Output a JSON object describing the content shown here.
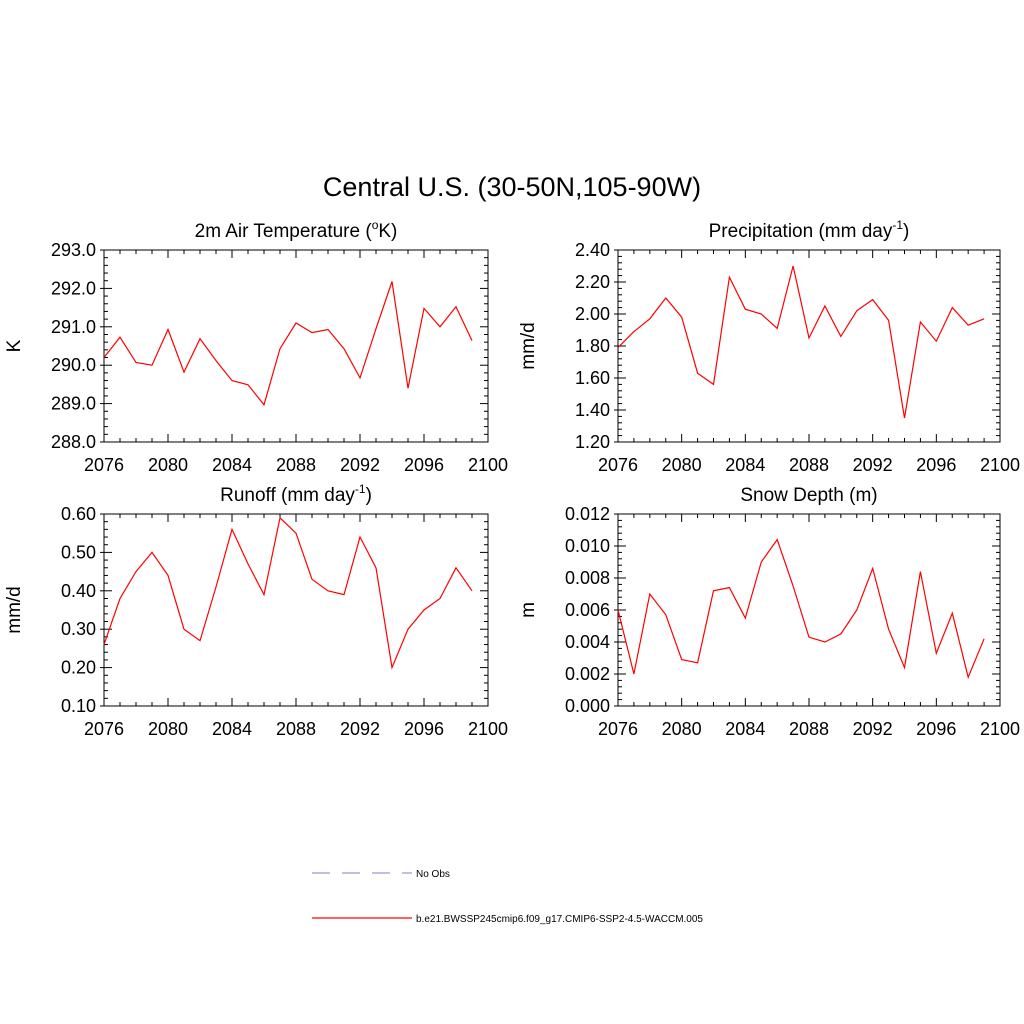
{
  "figure": {
    "title": "Central U.S. (30-50N,105-90W)"
  },
  "chart_data": [
    {
      "type": "line",
      "id": "temp",
      "title": "2m Air Temperature (",
      "title_sup": "o",
      "title_tail": "K)",
      "ylabel": "K",
      "xlim": [
        2076,
        2100
      ],
      "ylim": [
        288.0,
        293.0
      ],
      "xticks": [
        "2076",
        "2080",
        "2084",
        "2088",
        "2092",
        "2096",
        "2100"
      ],
      "yticks": [
        "288.0",
        "289.0",
        "290.0",
        "291.0",
        "292.0",
        "293.0"
      ],
      "x": [
        2076,
        2077,
        2078,
        2079,
        2080,
        2081,
        2082,
        2083,
        2084,
        2085,
        2086,
        2087,
        2088,
        2089,
        2090,
        2091,
        2092,
        2093,
        2094,
        2095,
        2096,
        2097,
        2098,
        2099
      ],
      "series": [
        {
          "name": "b.e21.BWSSP245cmip6.f09_g17.CMIP6-SSP2-4.5-WACCM.005",
          "color": "#ff0000",
          "values": [
            290.2,
            290.73,
            290.07,
            290.0,
            290.93,
            289.82,
            290.69,
            290.12,
            289.6,
            289.49,
            288.97,
            290.43,
            291.1,
            290.85,
            290.93,
            290.43,
            289.67,
            290.95,
            292.18,
            289.4,
            291.48,
            291.0,
            291.52,
            290.64
          ]
        }
      ]
    },
    {
      "type": "line",
      "id": "precip",
      "title": "Precipitation (mm day",
      "title_sup": "-1",
      "title_tail": ")",
      "ylabel": "mm/d",
      "xlim": [
        2076,
        2100
      ],
      "ylim": [
        1.2,
        2.4
      ],
      "xticks": [
        "2076",
        "2080",
        "2084",
        "2088",
        "2092",
        "2096",
        "2100"
      ],
      "yticks": [
        "1.20",
        "1.40",
        "1.60",
        "1.80",
        "2.00",
        "2.20",
        "2.40"
      ],
      "x": [
        2076,
        2077,
        2078,
        2079,
        2080,
        2081,
        2082,
        2083,
        2084,
        2085,
        2086,
        2087,
        2088,
        2089,
        2090,
        2091,
        2092,
        2093,
        2094,
        2095,
        2096,
        2097,
        2098,
        2099
      ],
      "series": [
        {
          "name": "b.e21.BWSSP245cmip6.f09_g17.CMIP6-SSP2-4.5-WACCM.005",
          "color": "#ff0000",
          "values": [
            1.79,
            1.89,
            1.97,
            2.1,
            1.98,
            1.63,
            1.56,
            2.23,
            2.03,
            2.0,
            1.91,
            2.3,
            1.85,
            2.05,
            1.86,
            2.02,
            2.09,
            1.96,
            1.35,
            1.95,
            1.83,
            2.04,
            1.93,
            1.97
          ]
        }
      ]
    },
    {
      "type": "line",
      "id": "runoff",
      "title": "Runoff (mm day",
      "title_sup": "-1",
      "title_tail": ")",
      "ylabel": "mm/d",
      "xlim": [
        2076,
        2100
      ],
      "ylim": [
        0.1,
        0.6
      ],
      "xticks": [
        "2076",
        "2080",
        "2084",
        "2088",
        "2092",
        "2096",
        "2100"
      ],
      "yticks": [
        "0.10",
        "0.20",
        "0.30",
        "0.40",
        "0.50",
        "0.60"
      ],
      "x": [
        2076,
        2077,
        2078,
        2079,
        2080,
        2081,
        2082,
        2083,
        2084,
        2085,
        2086,
        2087,
        2088,
        2089,
        2090,
        2091,
        2092,
        2093,
        2094,
        2095,
        2096,
        2097,
        2098,
        2099
      ],
      "series": [
        {
          "name": "b.e21.BWSSP245cmip6.f09_g17.CMIP6-SSP2-4.5-WACCM.005",
          "color": "#ff0000",
          "values": [
            0.26,
            0.38,
            0.45,
            0.5,
            0.44,
            0.3,
            0.27,
            0.41,
            0.56,
            0.47,
            0.39,
            0.59,
            0.55,
            0.43,
            0.4,
            0.39,
            0.54,
            0.46,
            0.2,
            0.3,
            0.35,
            0.38,
            0.46,
            0.4
          ]
        }
      ]
    },
    {
      "type": "line",
      "id": "snow",
      "title": "Snow Depth (m)",
      "title_sup": "",
      "title_tail": "",
      "ylabel": "m",
      "xlim": [
        2076,
        2100
      ],
      "ylim": [
        0.0,
        0.012
      ],
      "xticks": [
        "2076",
        "2080",
        "2084",
        "2088",
        "2092",
        "2096",
        "2100"
      ],
      "yticks": [
        "0.000",
        "0.002",
        "0.004",
        "0.006",
        "0.008",
        "0.010",
        "0.012"
      ],
      "x": [
        2076,
        2077,
        2078,
        2079,
        2080,
        2081,
        2082,
        2083,
        2084,
        2085,
        2086,
        2087,
        2088,
        2089,
        2090,
        2091,
        2092,
        2093,
        2094,
        2095,
        2096,
        2097,
        2098,
        2099
      ],
      "series": [
        {
          "name": "b.e21.BWSSP245cmip6.f09_g17.CMIP6-SSP2-4.5-WACCM.005",
          "color": "#ff0000",
          "values": [
            0.006,
            0.002,
            0.007,
            0.0057,
            0.0029,
            0.0027,
            0.0072,
            0.0074,
            0.0055,
            0.009,
            0.0104,
            0.0075,
            0.0043,
            0.004,
            0.0045,
            0.006,
            0.0086,
            0.0048,
            0.0024,
            0.0084,
            0.0033,
            0.0058,
            0.0018,
            0.0042
          ]
        }
      ]
    }
  ],
  "legend": {
    "entries": [
      {
        "label": "No Obs",
        "style": "dashed",
        "color": "#9999dd"
      },
      {
        "label": "b.e21.BWSSP245cmip6.f09_g17.CMIP6-SSP2-4.5-WACCM.005",
        "style": "solid",
        "color": "#ff0000"
      }
    ]
  }
}
